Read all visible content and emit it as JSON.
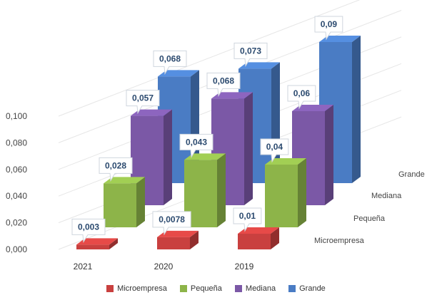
{
  "chart_data": {
    "type": "bar",
    "style": "3d-clustered-column",
    "categories": [
      "2021",
      "2020",
      "2019"
    ],
    "series": [
      {
        "name": "Microempresa",
        "color": "#c9403f",
        "values": [
          0.003,
          0.0078,
          0.01
        ],
        "labels": [
          "0,003",
          "0,0078",
          "0,01"
        ]
      },
      {
        "name": "Pequeña",
        "color": "#8db449",
        "values": [
          0.028,
          0.043,
          0.04
        ],
        "labels": [
          "0,028",
          "0,043",
          "0,04"
        ]
      },
      {
        "name": "Mediana",
        "color": "#7b58a6",
        "values": [
          0.057,
          0.068,
          0.06
        ],
        "labels": [
          "0,057",
          "0,068",
          "0,06"
        ]
      },
      {
        "name": "Grande",
        "color": "#4a7cc4",
        "values": [
          0.068,
          0.073,
          0.09
        ],
        "labels": [
          "0,068",
          "0,073",
          "0,09"
        ]
      }
    ],
    "y_ticks": [
      "0,000",
      "0,020",
      "0,040",
      "0,060",
      "0,080",
      "0,100"
    ],
    "ylim": [
      0,
      0.1
    ],
    "grid": true,
    "legend_position": "bottom"
  }
}
